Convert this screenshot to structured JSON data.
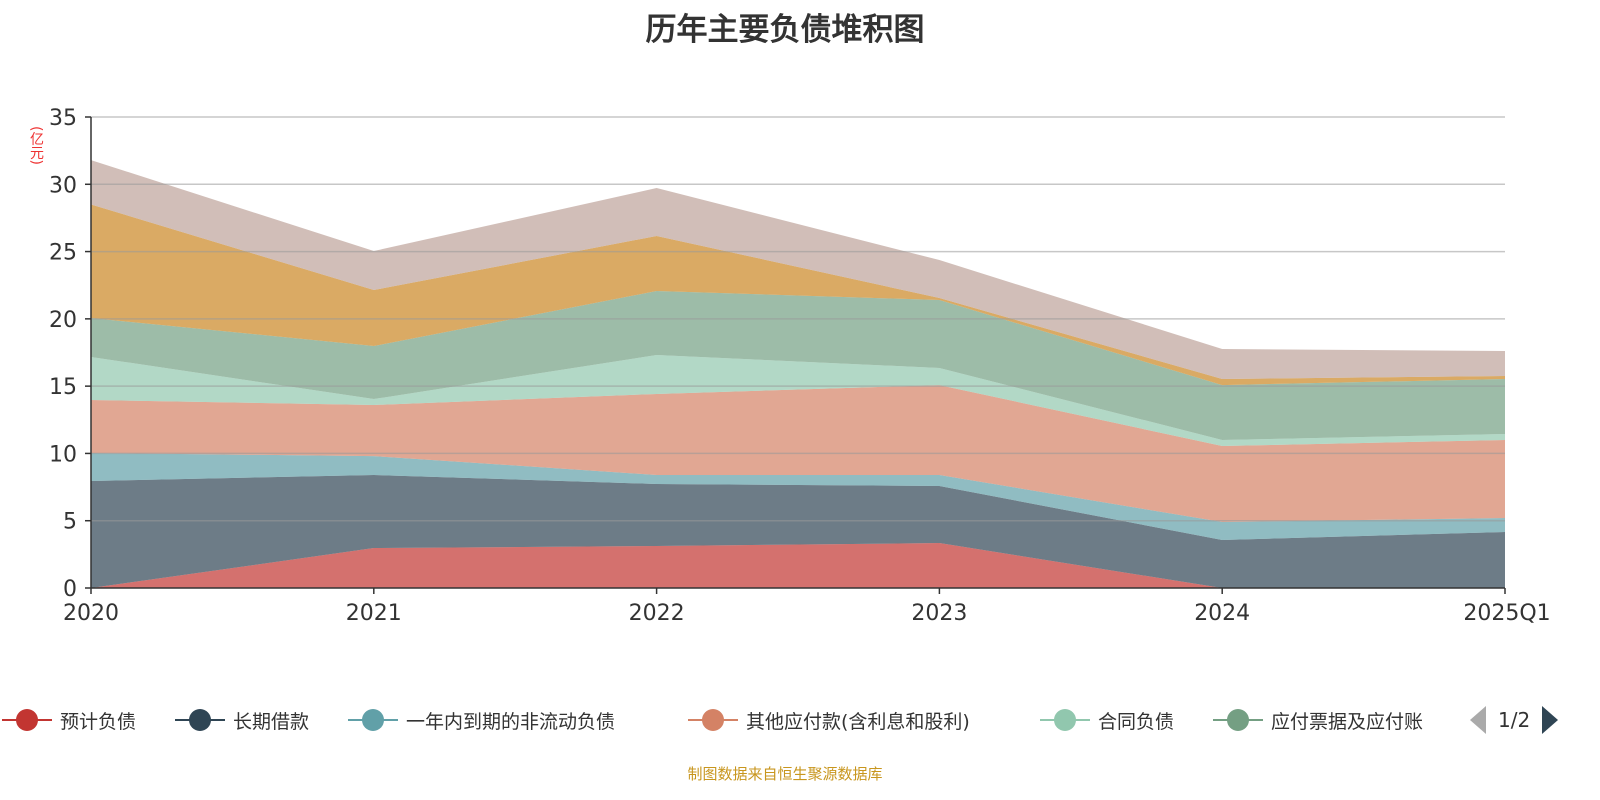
{
  "title": "历年主要负债堆积图",
  "footer": "制图数据来自恒生聚源数据库",
  "pager": {
    "text": "1/2"
  },
  "chart_data": {
    "type": "area",
    "stacked": true,
    "title": "历年主要负债堆积图",
    "ylabel": "(亿元)",
    "xlabel": "",
    "categories": [
      "2020",
      "2021",
      "2022",
      "2023",
      "2024",
      "2025Q1"
    ],
    "ylim": [
      0,
      35
    ],
    "yticks": [
      "0",
      "5",
      "10",
      "15",
      "20",
      "25",
      "30",
      "35"
    ],
    "grid": true,
    "legend_position": "bottom",
    "series": [
      {
        "name": "预计负债",
        "color": "#c23531",
        "values": [
          0,
          2.97,
          3.12,
          3.34,
          0,
          0
        ]
      },
      {
        "name": "长期借款",
        "color": "#2f4554",
        "values": [
          7.95,
          5.43,
          4.61,
          4.24,
          3.57,
          4.16
        ]
      },
      {
        "name": "一年内到期的非流动负债",
        "color": "#61a0a8",
        "values": [
          2.08,
          1.4,
          0.67,
          0.82,
          1.33,
          1.04
        ]
      },
      {
        "name": "其他应付款(含利息和股利)",
        "color": "#d48265",
        "values": [
          3.94,
          3.8,
          6.02,
          6.68,
          5.65,
          5.8
        ]
      },
      {
        "name": "合同负债",
        "color": "#91c7ae",
        "values": [
          3.2,
          0.44,
          2.89,
          1.27,
          0.45,
          0.44
        ]
      },
      {
        "name": "应付票据及应付账",
        "color": "#749f83",
        "values": [
          2.89,
          3.94,
          4.76,
          5.05,
          4.08,
          4.09
        ]
      },
      {
        "color": "#ca8622",
        "values": [
          8.44,
          4.16,
          4.09,
          0.15,
          0.45,
          0.22
        ]
      },
      {
        "color": "#bda29a",
        "values": [
          3.3,
          2.9,
          3.56,
          2.82,
          2.23,
          1.86
        ]
      }
    ]
  }
}
